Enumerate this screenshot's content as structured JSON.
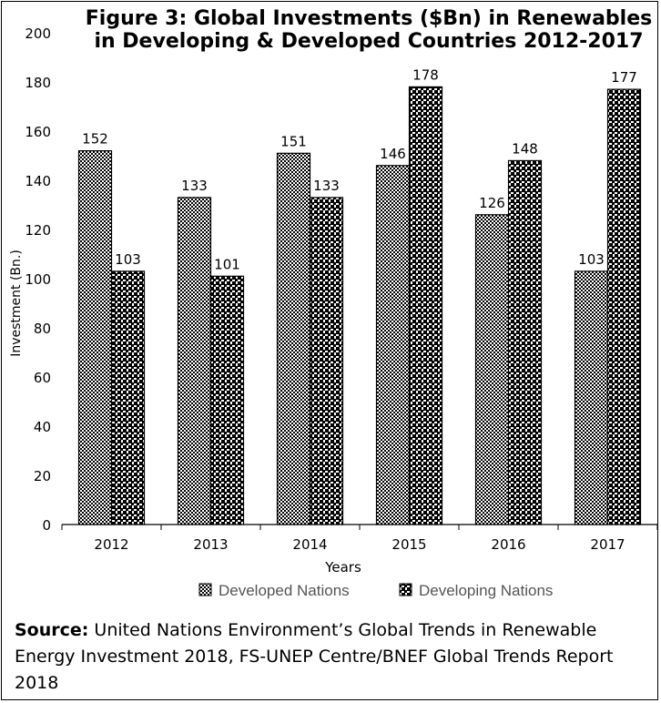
{
  "chart_data": {
    "type": "bar",
    "title": "Figure 3: Global Investments ($Bn) in Renewables in Developing & Developed Countries 2012-2017",
    "xlabel": "Years",
    "ylabel": "Investment (Bn.)",
    "ylim": [
      0,
      200
    ],
    "yticks": [
      0,
      20,
      40,
      60,
      80,
      100,
      120,
      140,
      160,
      180,
      200
    ],
    "categories": [
      "2012",
      "2013",
      "2014",
      "2015",
      "2016",
      "2017"
    ],
    "series": [
      {
        "name": "Developed Nations",
        "values": [
          152,
          133,
          151,
          146,
          126,
          103
        ],
        "pattern": "dense-checker"
      },
      {
        "name": "Developing Nations",
        "values": [
          103,
          101,
          133,
          178,
          148,
          177
        ],
        "pattern": "grid-checker"
      }
    ],
    "legend_position": "bottom",
    "grid": false,
    "data_labels": true
  },
  "source": {
    "label": "Source:",
    "text": " United Nations Environment’s Global Trends in Renewable Energy Investment 2018, FS-UNEP Centre/BNEF Global Trends Report 2018"
  },
  "colors": {
    "bar_fill": "#000000",
    "background": "#ffffff"
  }
}
